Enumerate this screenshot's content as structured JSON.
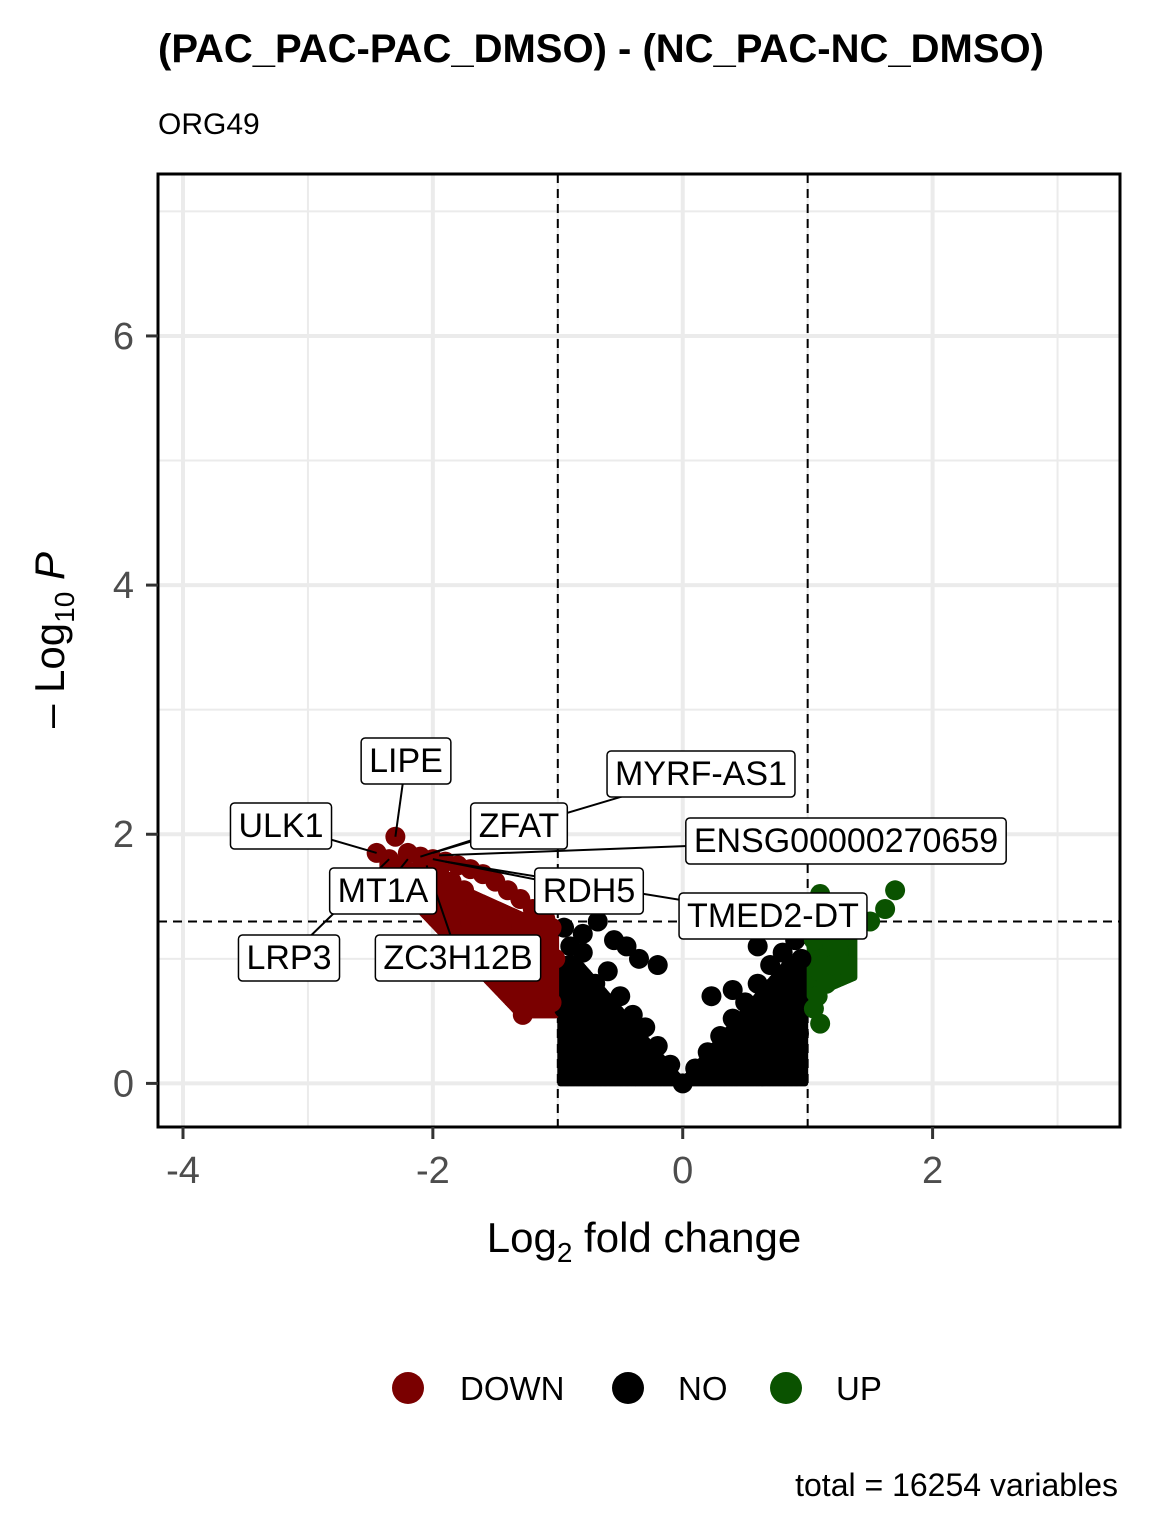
{
  "chart_data": {
    "type": "scatter",
    "title": "(PAC_PAC-PAC_DMSO) - (NC_PAC-NC_DMSO)",
    "subtitle": "ORG49",
    "xlabel_main": "Log",
    "xlabel_sub": "2",
    "xlabel_rest": " fold change",
    "ylabel_main": "– Log",
    "ylabel_sub": "10",
    "ylabel_italic": " P",
    "xlim": [
      -4.2,
      3.5
    ],
    "ylim": [
      -0.35,
      7.3
    ],
    "x_ticks": [
      -4,
      -2,
      0,
      2
    ],
    "x_tick_labels": [
      "-4",
      "-2",
      "0",
      "2"
    ],
    "y_ticks": [
      0,
      2,
      4,
      6
    ],
    "y_tick_labels": [
      "0",
      "2",
      "4",
      "6"
    ],
    "grid": true,
    "fc_cutoff": [
      -1,
      1
    ],
    "p_cutoff_log10": 1.3,
    "colors": {
      "DOWN": "#7a0000",
      "NO": "#000000",
      "UP": "#0a5200"
    },
    "legend": {
      "position": "bottom",
      "entries": [
        {
          "key": "DOWN",
          "label": "DOWN",
          "color": "#7a0000"
        },
        {
          "key": "NO",
          "label": "NO",
          "color": "#000000"
        },
        {
          "key": "UP",
          "label": "UP",
          "color": "#0a5200"
        }
      ]
    },
    "caption": "total = 16254 variables",
    "labeled_genes": [
      {
        "gene": "LIPE",
        "x": -2.3,
        "y": 1.98
      },
      {
        "gene": "ULK1",
        "x": -2.45,
        "y": 1.85
      },
      {
        "gene": "ZFAT",
        "x": -2.1,
        "y": 1.82
      },
      {
        "gene": "MYRF-AS1",
        "x": -2.0,
        "y": 1.85
      },
      {
        "gene": "ENSG00000270659",
        "x": -1.95,
        "y": 1.83
      },
      {
        "gene": "RDH5",
        "x": -2.0,
        "y": 1.8
      },
      {
        "gene": "TMED2-DT",
        "x": -1.9,
        "y": 1.78
      },
      {
        "gene": "MT1A",
        "x": -2.2,
        "y": 1.8
      },
      {
        "gene": "LRP3",
        "x": -2.35,
        "y": 1.8
      },
      {
        "gene": "ZC3H12B",
        "x": -2.05,
        "y": 1.75
      }
    ],
    "points": {
      "DOWN": [
        [
          -2.3,
          1.98
        ],
        [
          -2.45,
          1.85
        ],
        [
          -2.2,
          1.85
        ],
        [
          -2.1,
          1.82
        ],
        [
          -2.0,
          1.8
        ],
        [
          -1.9,
          1.78
        ],
        [
          -1.8,
          1.75
        ],
        [
          -1.7,
          1.72
        ],
        [
          -1.6,
          1.68
        ],
        [
          -1.5,
          1.62
        ],
        [
          -1.4,
          1.55
        ],
        [
          -1.3,
          1.48
        ],
        [
          -1.2,
          1.4
        ],
        [
          -1.1,
          1.32
        ],
        [
          -1.05,
          1.25
        ],
        [
          -2.35,
          1.8
        ],
        [
          -2.05,
          1.75
        ],
        [
          -1.95,
          1.7
        ],
        [
          -1.85,
          1.62
        ],
        [
          -1.75,
          1.55
        ],
        [
          -1.65,
          1.45
        ],
        [
          -1.55,
          1.35
        ],
        [
          -1.45,
          1.25
        ],
        [
          -1.35,
          1.15
        ],
        [
          -1.25,
          1.05
        ],
        [
          -1.15,
          0.95
        ],
        [
          -1.1,
          0.85
        ],
        [
          -1.2,
          0.75
        ],
        [
          -1.28,
          0.55
        ],
        [
          -1.05,
          0.65
        ],
        [
          -1.5,
          1.1
        ],
        [
          -1.6,
          1.2
        ],
        [
          -1.7,
          1.3
        ],
        [
          -1.8,
          1.4
        ],
        [
          -1.4,
          0.95
        ],
        [
          -1.3,
          0.85
        ],
        [
          -1.02,
          1.0
        ],
        [
          -1.12,
          1.15
        ]
      ],
      "NO": [
        [
          -0.9,
          1.1
        ],
        [
          -0.8,
          1.05
        ],
        [
          -0.68,
          1.3
        ],
        [
          -0.55,
          1.15
        ],
        [
          -0.45,
          1.1
        ],
        [
          -0.35,
          1.0
        ],
        [
          -0.2,
          0.95
        ],
        [
          -0.6,
          0.9
        ],
        [
          -0.7,
          0.8
        ],
        [
          -0.85,
          0.75
        ],
        [
          -0.95,
          0.6
        ],
        [
          -0.5,
          0.7
        ],
        [
          -0.4,
          0.55
        ],
        [
          -0.3,
          0.45
        ],
        [
          -0.2,
          0.3
        ],
        [
          -0.1,
          0.15
        ],
        [
          0,
          0
        ],
        [
          0.1,
          0.12
        ],
        [
          0.2,
          0.25
        ],
        [
          0.3,
          0.38
        ],
        [
          0.4,
          0.52
        ],
        [
          0.5,
          0.65
        ],
        [
          0.6,
          0.8
        ],
        [
          0.7,
          0.95
        ],
        [
          0.8,
          1.05
        ],
        [
          0.9,
          1.15
        ],
        [
          0.95,
          1.0
        ],
        [
          0.85,
          0.85
        ],
        [
          0.75,
          0.7
        ],
        [
          0.65,
          0.55
        ],
        [
          0.55,
          0.45
        ],
        [
          0.45,
          0.35
        ],
        [
          0.35,
          0.25
        ],
        [
          0.22,
          0.15
        ],
        [
          0.23,
          0.7
        ],
        [
          0.4,
          0.75
        ],
        [
          0.6,
          1.1
        ],
        [
          -0.9,
          0.3
        ],
        [
          -0.85,
          0.45
        ],
        [
          -0.75,
          0.35
        ],
        [
          -0.65,
          0.3
        ],
        [
          -0.5,
          0.22
        ],
        [
          -0.35,
          0.15
        ],
        [
          0.93,
          0.4
        ],
        [
          0.8,
          0.3
        ],
        [
          0.65,
          0.25
        ],
        [
          -0.95,
          1.25
        ],
        [
          -0.8,
          1.2
        ],
        [
          0.98,
          1.2
        ],
        [
          0.9,
          0.6
        ]
      ],
      "UP": [
        [
          1.7,
          1.55
        ],
        [
          1.62,
          1.4
        ],
        [
          1.5,
          1.3
        ],
        [
          1.4,
          1.25
        ],
        [
          1.3,
          1.18
        ],
        [
          1.2,
          1.1
        ],
        [
          1.12,
          1.0
        ],
        [
          1.1,
          0.9
        ],
        [
          1.15,
          0.8
        ],
        [
          1.08,
          0.7
        ],
        [
          1.2,
          0.95
        ],
        [
          1.25,
          1.05
        ],
        [
          1.05,
          1.15
        ],
        [
          1.1,
          1.52
        ],
        [
          1.05,
          0.6
        ],
        [
          1.1,
          0.48
        ],
        [
          1.3,
          0.95
        ]
      ]
    }
  }
}
